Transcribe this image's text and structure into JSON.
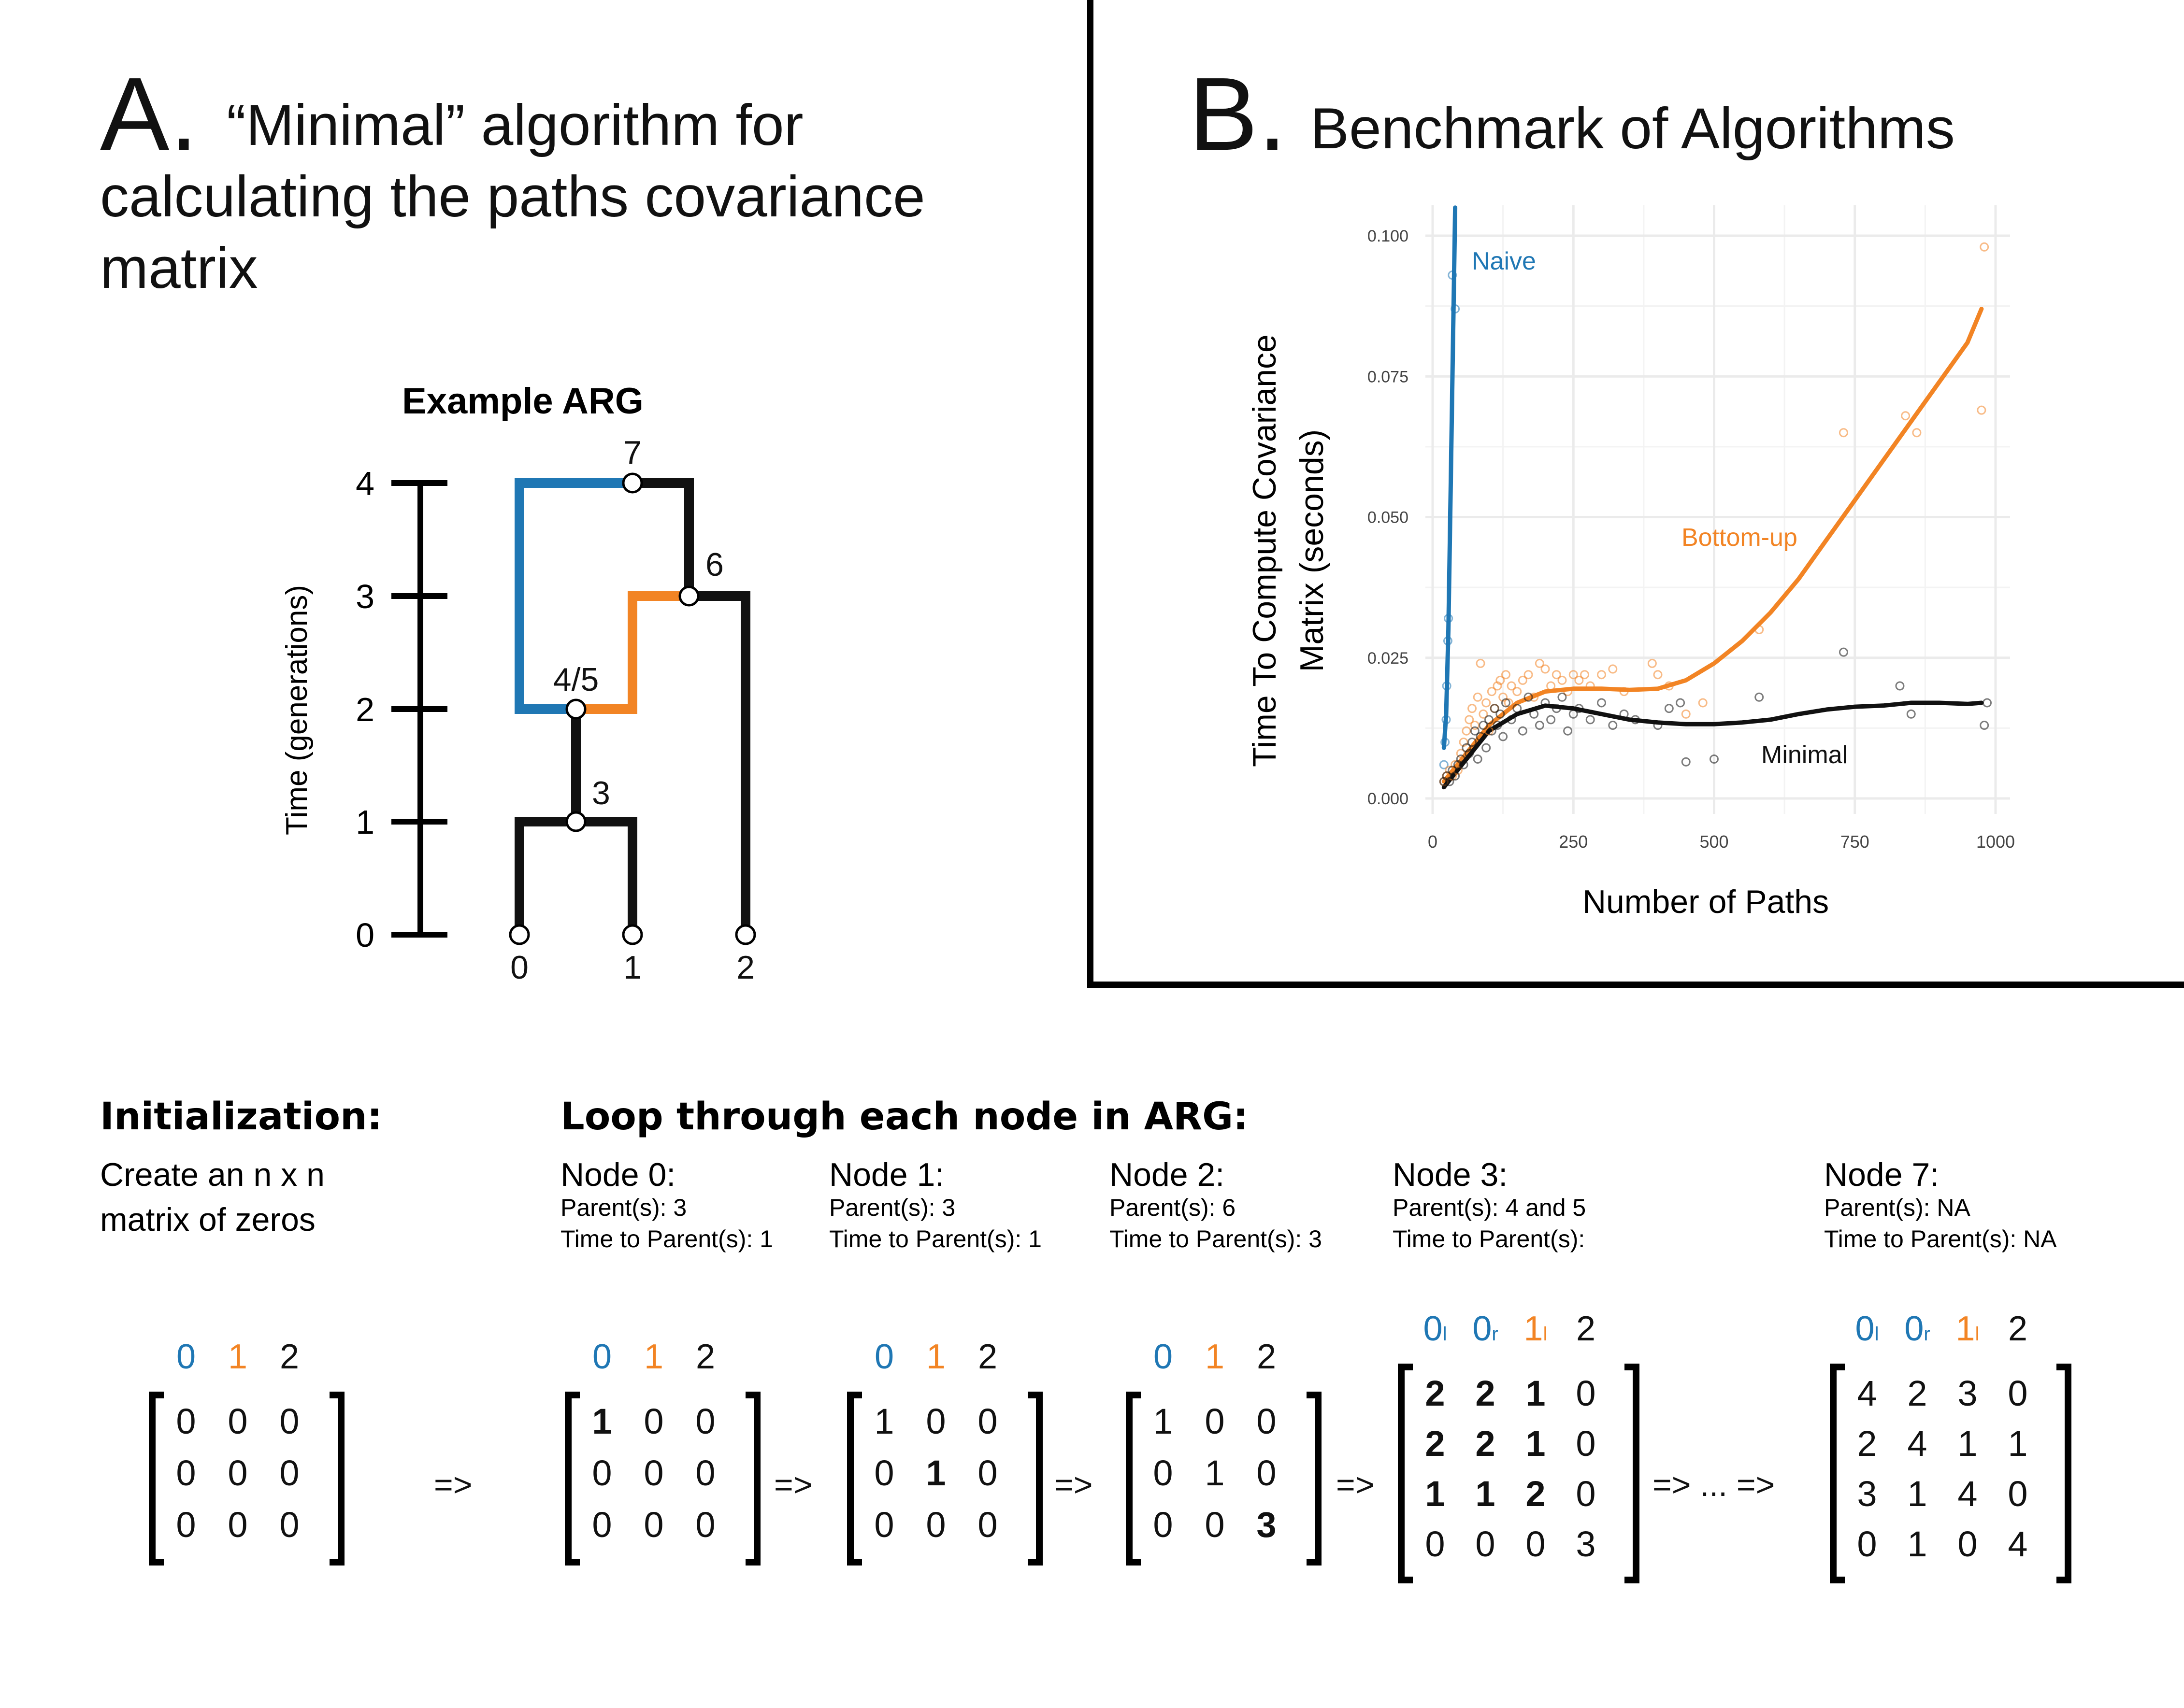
{
  "panel_a": {
    "letter": "A.",
    "title_line1": "“Minimal” algorithm for",
    "title_line2": "calculating the paths covariance",
    "title_line3": "matrix",
    "arg_title": "Example ARG",
    "time_axis_label": "Time (generations)",
    "time_ticks": [
      "0",
      "1",
      "2",
      "3",
      "4"
    ],
    "node_labels": {
      "n0": "0",
      "n1": "1",
      "n2": "2",
      "n3": "3",
      "n45": "4/5",
      "n6": "6",
      "n7": "7"
    }
  },
  "panel_b": {
    "letter": "B.",
    "title": "Benchmark of Algorithms"
  },
  "colors": {
    "blue": "#1f77b4",
    "orange": "#f28424",
    "black": "#111111",
    "grid": "#ebebeb"
  },
  "chart_data": {
    "type": "scatter",
    "title": "",
    "xlabel": "Number of Paths",
    "ylabel_line1": "Time To Compute Covariance",
    "ylabel_line2": "Matrix (seconds)",
    "xlim": [
      0,
      1000
    ],
    "ylim": [
      0,
      0.1
    ],
    "x_ticks": [
      "0",
      "250",
      "500",
      "750",
      "1000"
    ],
    "y_ticks": [
      "0.000",
      "0.025",
      "0.050",
      "0.075",
      "0.100"
    ],
    "x_tick_values": [
      0,
      250,
      500,
      750,
      1000
    ],
    "y_tick_values": [
      0,
      0.025,
      0.05,
      0.075,
      0.1
    ],
    "grid": true,
    "series": [
      {
        "name": "Naive",
        "color": "#1f77b4",
        "points": [
          [
            20,
            0.006
          ],
          [
            22,
            0.01
          ],
          [
            24,
            0.014
          ],
          [
            25,
            0.02
          ],
          [
            27,
            0.028
          ],
          [
            28,
            0.032
          ],
          [
            35,
            0.093
          ],
          [
            40,
            0.087
          ]
        ],
        "fit": [
          [
            20,
            0.009
          ],
          [
            24,
            0.015
          ],
          [
            28,
            0.03
          ],
          [
            32,
            0.055
          ],
          [
            36,
            0.08
          ],
          [
            40,
            0.105
          ]
        ]
      },
      {
        "name": "Bottom-up",
        "color": "#f28424",
        "points": [
          [
            20,
            0.003
          ],
          [
            25,
            0.004
          ],
          [
            30,
            0.005
          ],
          [
            35,
            0.004
          ],
          [
            40,
            0.006
          ],
          [
            45,
            0.005
          ],
          [
            50,
            0.008
          ],
          [
            55,
            0.01
          ],
          [
            60,
            0.012
          ],
          [
            65,
            0.014
          ],
          [
            70,
            0.016
          ],
          [
            75,
            0.013
          ],
          [
            80,
            0.018
          ],
          [
            85,
            0.024
          ],
          [
            90,
            0.015
          ],
          [
            95,
            0.017
          ],
          [
            100,
            0.012
          ],
          [
            105,
            0.019
          ],
          [
            110,
            0.016
          ],
          [
            115,
            0.02
          ],
          [
            120,
            0.021
          ],
          [
            125,
            0.018
          ],
          [
            130,
            0.022
          ],
          [
            135,
            0.017
          ],
          [
            140,
            0.02
          ],
          [
            150,
            0.019
          ],
          [
            160,
            0.021
          ],
          [
            170,
            0.022
          ],
          [
            180,
            0.018
          ],
          [
            190,
            0.024
          ],
          [
            200,
            0.023
          ],
          [
            210,
            0.02
          ],
          [
            220,
            0.022
          ],
          [
            230,
            0.021
          ],
          [
            240,
            0.019
          ],
          [
            250,
            0.022
          ],
          [
            260,
            0.021
          ],
          [
            270,
            0.022
          ],
          [
            280,
            0.02
          ],
          [
            300,
            0.022
          ],
          [
            320,
            0.023
          ],
          [
            340,
            0.019
          ],
          [
            390,
            0.024
          ],
          [
            400,
            0.022
          ],
          [
            420,
            0.02
          ],
          [
            450,
            0.015
          ],
          [
            480,
            0.017
          ],
          [
            580,
            0.03
          ],
          [
            730,
            0.065
          ],
          [
            840,
            0.068
          ],
          [
            860,
            0.065
          ],
          [
            980,
            0.098
          ],
          [
            975,
            0.069
          ]
        ],
        "fit": [
          [
            20,
            0.003
          ],
          [
            60,
            0.008
          ],
          [
            100,
            0.013
          ],
          [
            150,
            0.017
          ],
          [
            200,
            0.019
          ],
          [
            250,
            0.0195
          ],
          [
            300,
            0.0195
          ],
          [
            350,
            0.0193
          ],
          [
            400,
            0.0195
          ],
          [
            450,
            0.021
          ],
          [
            500,
            0.024
          ],
          [
            550,
            0.028
          ],
          [
            600,
            0.033
          ],
          [
            650,
            0.039
          ],
          [
            700,
            0.046
          ],
          [
            750,
            0.053
          ],
          [
            800,
            0.06
          ],
          [
            850,
            0.067
          ],
          [
            900,
            0.074
          ],
          [
            950,
            0.081
          ],
          [
            975,
            0.087
          ]
        ]
      },
      {
        "name": "Minimal",
        "color": "#111111",
        "points": [
          [
            20,
            0.003
          ],
          [
            25,
            0.004
          ],
          [
            30,
            0.003
          ],
          [
            35,
            0.005
          ],
          [
            40,
            0.004
          ],
          [
            45,
            0.006
          ],
          [
            50,
            0.007
          ],
          [
            55,
            0.006
          ],
          [
            60,
            0.009
          ],
          [
            65,
            0.008
          ],
          [
            70,
            0.01
          ],
          [
            75,
            0.012
          ],
          [
            80,
            0.007
          ],
          [
            85,
            0.011
          ],
          [
            90,
            0.013
          ],
          [
            95,
            0.009
          ],
          [
            100,
            0.014
          ],
          [
            105,
            0.012
          ],
          [
            110,
            0.016
          ],
          [
            115,
            0.013
          ],
          [
            120,
            0.015
          ],
          [
            125,
            0.011
          ],
          [
            130,
            0.017
          ],
          [
            140,
            0.014
          ],
          [
            150,
            0.016
          ],
          [
            160,
            0.012
          ],
          [
            170,
            0.018
          ],
          [
            180,
            0.015
          ],
          [
            190,
            0.013
          ],
          [
            200,
            0.017
          ],
          [
            210,
            0.014
          ],
          [
            220,
            0.016
          ],
          [
            230,
            0.018
          ],
          [
            240,
            0.012
          ],
          [
            250,
            0.015
          ],
          [
            260,
            0.016
          ],
          [
            280,
            0.014
          ],
          [
            300,
            0.017
          ],
          [
            320,
            0.013
          ],
          [
            340,
            0.015
          ],
          [
            360,
            0.014
          ],
          [
            400,
            0.013
          ],
          [
            420,
            0.016
          ],
          [
            440,
            0.017
          ],
          [
            450,
            0.0065
          ],
          [
            500,
            0.007
          ],
          [
            580,
            0.018
          ],
          [
            730,
            0.026
          ],
          [
            830,
            0.02
          ],
          [
            850,
            0.015
          ],
          [
            980,
            0.013
          ],
          [
            985,
            0.017
          ]
        ],
        "fit": [
          [
            20,
            0.002
          ],
          [
            60,
            0.007
          ],
          [
            100,
            0.012
          ],
          [
            150,
            0.015
          ],
          [
            200,
            0.0165
          ],
          [
            250,
            0.016
          ],
          [
            300,
            0.015
          ],
          [
            350,
            0.014
          ],
          [
            400,
            0.0135
          ],
          [
            450,
            0.0132
          ],
          [
            500,
            0.0132
          ],
          [
            550,
            0.0135
          ],
          [
            600,
            0.014
          ],
          [
            650,
            0.015
          ],
          [
            700,
            0.0158
          ],
          [
            750,
            0.0163
          ],
          [
            800,
            0.0165
          ],
          [
            850,
            0.017
          ],
          [
            900,
            0.017
          ],
          [
            950,
            0.0168
          ],
          [
            975,
            0.017
          ]
        ]
      }
    ],
    "annotations": [
      "Naive",
      "Bottom-up",
      "Minimal"
    ]
  },
  "bottom": {
    "init_heading": "Initialization:",
    "init_desc_line1": "Create an n x n",
    "init_desc_line2": "matrix of zeros",
    "loop_heading": "Loop through each node in ARG:",
    "arrow": "=>",
    "arrow_ellipsis": "=> ... =>",
    "nodes": [
      {
        "title": "Node 0:",
        "parents": "Parent(s): 3",
        "time": "Time to Parent(s): 1"
      },
      {
        "title": "Node 1:",
        "parents": "Parent(s): 3",
        "time": "Time to Parent(s): 1"
      },
      {
        "title": "Node 2:",
        "parents": "Parent(s): 6",
        "time": "Time to Parent(s): 3"
      },
      {
        "title": "Node 3:",
        "parents": "Parent(s): 4 and 5",
        "time": "Time to Parent(s):"
      },
      {
        "title": "Node 7:",
        "parents": "Parent(s): NA",
        "time": "Time to Parent(s): NA"
      }
    ],
    "matrices": [
      {
        "headers": [
          {
            "t": "0",
            "s": "",
            "c": "blue"
          },
          {
            "t": "1",
            "s": "",
            "c": "orange"
          },
          {
            "t": "2",
            "s": "",
            "c": "black"
          }
        ],
        "rows": [
          [
            "0",
            "0",
            "0"
          ],
          [
            "0",
            "0",
            "0"
          ],
          [
            "0",
            "0",
            "0"
          ]
        ],
        "bold": []
      },
      {
        "headers": [
          {
            "t": "0",
            "s": "",
            "c": "blue"
          },
          {
            "t": "1",
            "s": "",
            "c": "orange"
          },
          {
            "t": "2",
            "s": "",
            "c": "black"
          }
        ],
        "rows": [
          [
            "1",
            "0",
            "0"
          ],
          [
            "0",
            "0",
            "0"
          ],
          [
            "0",
            "0",
            "0"
          ]
        ],
        "bold": [
          [
            0,
            0
          ]
        ]
      },
      {
        "headers": [
          {
            "t": "0",
            "s": "",
            "c": "blue"
          },
          {
            "t": "1",
            "s": "",
            "c": "orange"
          },
          {
            "t": "2",
            "s": "",
            "c": "black"
          }
        ],
        "rows": [
          [
            "1",
            "0",
            "0"
          ],
          [
            "0",
            "1",
            "0"
          ],
          [
            "0",
            "0",
            "0"
          ]
        ],
        "bold": [
          [
            1,
            1
          ]
        ]
      },
      {
        "headers": [
          {
            "t": "0",
            "s": "",
            "c": "blue"
          },
          {
            "t": "1",
            "s": "",
            "c": "orange"
          },
          {
            "t": "2",
            "s": "",
            "c": "black"
          }
        ],
        "rows": [
          [
            "1",
            "0",
            "0"
          ],
          [
            "0",
            "1",
            "0"
          ],
          [
            "0",
            "0",
            "3"
          ]
        ],
        "bold": [
          [
            2,
            2
          ]
        ]
      },
      {
        "headers": [
          {
            "t": "0",
            "s": "l",
            "c": "blue"
          },
          {
            "t": "0",
            "s": "r",
            "c": "blue"
          },
          {
            "t": "1",
            "s": "l",
            "c": "orange"
          },
          {
            "t": "2",
            "s": "",
            "c": "black"
          }
        ],
        "rows": [
          [
            "2",
            "2",
            "1",
            "0"
          ],
          [
            "2",
            "2",
            "1",
            "0"
          ],
          [
            "1",
            "1",
            "2",
            "0"
          ],
          [
            "0",
            "0",
            "0",
            "3"
          ]
        ],
        "bold": [
          [
            0,
            0
          ],
          [
            0,
            1
          ],
          [
            0,
            2
          ],
          [
            1,
            0
          ],
          [
            1,
            1
          ],
          [
            1,
            2
          ],
          [
            2,
            0
          ],
          [
            2,
            1
          ],
          [
            2,
            2
          ]
        ]
      },
      {
        "headers": [
          {
            "t": "0",
            "s": "l",
            "c": "blue"
          },
          {
            "t": "0",
            "s": "r",
            "c": "blue"
          },
          {
            "t": "1",
            "s": "l",
            "c": "orange"
          },
          {
            "t": "2",
            "s": "",
            "c": "black"
          }
        ],
        "rows": [
          [
            "4",
            "2",
            "3",
            "0"
          ],
          [
            "2",
            "4",
            "1",
            "1"
          ],
          [
            "3",
            "1",
            "4",
            "0"
          ],
          [
            "0",
            "1",
            "0",
            "4"
          ]
        ],
        "bold": []
      }
    ]
  }
}
